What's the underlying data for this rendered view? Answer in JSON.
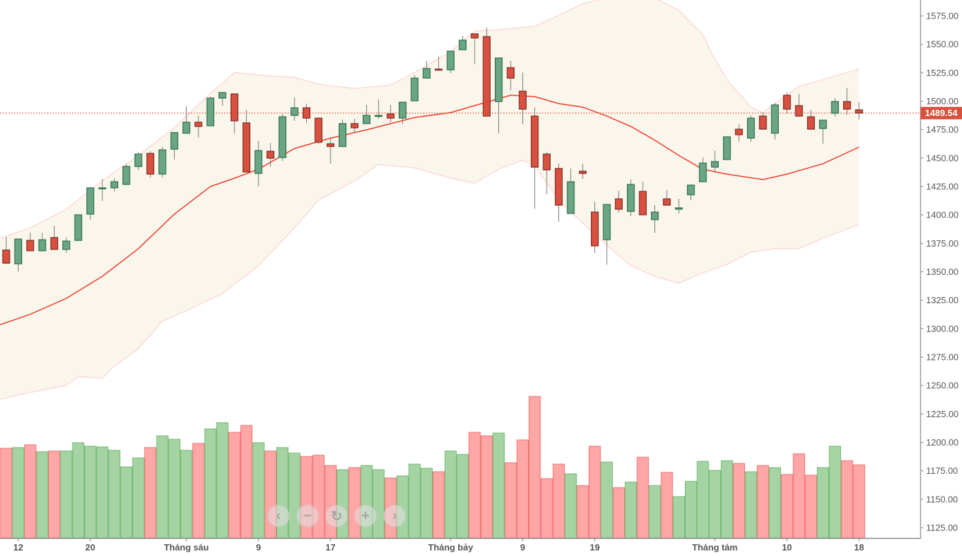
{
  "chart_data": {
    "type": "candlestick",
    "title": "",
    "ylim": [
      1115,
      1590
    ],
    "y_ticks": [
      "1125.00",
      "1150.00",
      "1175.00",
      "1200.00",
      "1225.00",
      "1250.00",
      "1275.00",
      "1300.00",
      "1325.00",
      "1350.00",
      "1375.00",
      "1400.00",
      "1425.00",
      "1450.00",
      "1475.00",
      "1500.00",
      "1525.00",
      "1550.00",
      "1575.00"
    ],
    "x_ticks": [
      {
        "index": 1,
        "label": "12"
      },
      {
        "index": 7,
        "label": "20"
      },
      {
        "index": 15,
        "label": "Tháng sáu"
      },
      {
        "index": 21,
        "label": "9"
      },
      {
        "index": 27,
        "label": "17"
      },
      {
        "index": 37,
        "label": "Tháng bảy"
      },
      {
        "index": 43,
        "label": "9"
      },
      {
        "index": 49,
        "label": "19"
      },
      {
        "index": 59,
        "label": "Tháng tám"
      },
      {
        "index": 65,
        "label": "10"
      },
      {
        "index": 71,
        "label": "18"
      }
    ],
    "last_price": 1489.54,
    "last_price_label": "1489.54",
    "ohlc": [
      [
        1369.1,
        1380.7,
        1357.0,
        1357.6
      ],
      [
        1357.0,
        1378.8,
        1350.3,
        1378.8
      ],
      [
        1377.6,
        1384.3,
        1368.5,
        1368.5
      ],
      [
        1368.5,
        1384.3,
        1368.5,
        1378.2
      ],
      [
        1380.1,
        1390.4,
        1369.7,
        1369.7
      ],
      [
        1369.7,
        1380.1,
        1366.7,
        1377.0
      ],
      [
        1377.6,
        1400.1,
        1377.6,
        1400.1
      ],
      [
        1400.7,
        1423.8,
        1395.9,
        1423.8
      ],
      [
        1423.4,
        1431.7,
        1412.2,
        1423.8
      ],
      [
        1423.8,
        1432.3,
        1420.7,
        1429.2
      ],
      [
        1426.8,
        1445.0,
        1426.8,
        1442.6
      ],
      [
        1442.6,
        1455.4,
        1439.6,
        1453.5
      ],
      [
        1454.1,
        1456.0,
        1432.9,
        1435.9
      ],
      [
        1435.9,
        1459.6,
        1432.9,
        1457.2
      ],
      [
        1457.8,
        1472.4,
        1448.7,
        1472.4
      ],
      [
        1471.8,
        1495.4,
        1471.8,
        1481.5
      ],
      [
        1481.5,
        1487.5,
        1468.1,
        1477.8
      ],
      [
        1478.4,
        1504.0,
        1478.4,
        1502.7
      ],
      [
        1502.7,
        1507.6,
        1496.1,
        1507.6
      ],
      [
        1506.4,
        1506.4,
        1471.8,
        1482.7
      ],
      [
        1480.9,
        1492.4,
        1437.8,
        1437.8
      ],
      [
        1436.5,
        1465.1,
        1425.0,
        1456.6
      ],
      [
        1456.0,
        1463.3,
        1442.6,
        1449.9
      ],
      [
        1450.5,
        1488.8,
        1447.5,
        1486.3
      ],
      [
        1487.5,
        1503.3,
        1482.7,
        1494.2
      ],
      [
        1494.2,
        1497.9,
        1480.9,
        1485.1
      ],
      [
        1485.1,
        1485.1,
        1462.6,
        1463.9
      ],
      [
        1462.6,
        1468.1,
        1445.0,
        1460.2
      ],
      [
        1460.2,
        1483.9,
        1460.2,
        1480.3
      ],
      [
        1480.3,
        1484.5,
        1471.8,
        1476.6
      ],
      [
        1480.3,
        1496.7,
        1480.3,
        1487.5
      ],
      [
        1486.9,
        1501.5,
        1484.5,
        1487.5
      ],
      [
        1488.8,
        1496.7,
        1481.5,
        1485.1
      ],
      [
        1485.1,
        1499.7,
        1479.7,
        1499.1
      ],
      [
        1500.3,
        1522.8,
        1500.3,
        1520.3
      ],
      [
        1520.3,
        1535.5,
        1520.3,
        1528.8
      ],
      [
        1528.2,
        1539.2,
        1527.6,
        1527.6
      ],
      [
        1527.6,
        1544.0,
        1524.6,
        1544.0
      ],
      [
        1545.2,
        1557.4,
        1545.2,
        1553.7
      ],
      [
        1559.2,
        1559.2,
        1532.5,
        1555.6
      ],
      [
        1556.8,
        1564.7,
        1486.9,
        1486.9
      ],
      [
        1499.7,
        1538.0,
        1471.8,
        1538.0
      ],
      [
        1529.5,
        1535.5,
        1509.4,
        1520.3
      ],
      [
        1508.8,
        1525.2,
        1479.7,
        1493.0
      ],
      [
        1486.9,
        1494.8,
        1405.6,
        1442.0
      ],
      [
        1453.5,
        1455.0,
        1418.3,
        1439.6
      ],
      [
        1440.8,
        1445.0,
        1394.0,
        1408.6
      ],
      [
        1401.3,
        1440.8,
        1401.3,
        1429.2
      ],
      [
        1438.4,
        1445.0,
        1431.7,
        1436.5
      ],
      [
        1402.5,
        1411.6,
        1366.7,
        1372.8
      ],
      [
        1378.2,
        1409.2,
        1356.4,
        1409.2
      ],
      [
        1414.1,
        1421.4,
        1401.9,
        1405.0
      ],
      [
        1403.1,
        1431.1,
        1398.9,
        1426.8
      ],
      [
        1420.7,
        1429.2,
        1400.1,
        1400.1
      ],
      [
        1395.9,
        1408.6,
        1384.3,
        1402.5
      ],
      [
        1414.1,
        1421.9,
        1408.6,
        1408.6
      ],
      [
        1405.0,
        1414.1,
        1401.3,
        1406.2
      ],
      [
        1417.7,
        1426.2,
        1412.9,
        1426.2
      ],
      [
        1429.2,
        1450.5,
        1429.2,
        1445.6
      ],
      [
        1442.0,
        1456.6,
        1437.1,
        1446.9
      ],
      [
        1448.7,
        1468.7,
        1448.7,
        1468.7
      ],
      [
        1475.4,
        1479.7,
        1464.5,
        1470.5
      ],
      [
        1467.5,
        1487.5,
        1464.5,
        1485.1
      ],
      [
        1486.9,
        1490.0,
        1475.4,
        1475.4
      ],
      [
        1471.8,
        1498.5,
        1466.3,
        1496.7
      ],
      [
        1505.2,
        1507.6,
        1489.4,
        1493.0
      ],
      [
        1496.1,
        1506.4,
        1486.9,
        1486.9
      ],
      [
        1486.3,
        1492.4,
        1475.4,
        1475.4
      ],
      [
        1476.0,
        1483.3,
        1462.6,
        1483.3
      ],
      [
        1489.4,
        1502.7,
        1486.3,
        1499.7
      ],
      [
        1499.7,
        1511.8,
        1488.2,
        1493.0
      ],
      [
        1492.4,
        1499.1,
        1483.9,
        1489.54
      ]
    ],
    "volume": [
      130,
      131,
      135,
      125,
      126,
      126,
      138,
      133,
      132,
      127,
      103,
      116,
      131,
      148,
      143,
      127,
      137,
      158,
      167,
      153,
      163,
      138,
      126,
      131,
      123,
      118,
      120,
      105,
      99,
      102,
      105,
      99,
      87,
      90,
      107,
      101,
      96,
      126,
      121,
      153,
      148,
      152,
      109,
      142,
      205,
      86,
      107,
      93,
      76,
      133,
      110,
      73,
      81,
      117,
      76,
      95,
      60,
      82,
      111,
      98,
      112,
      108,
      96,
      105,
      102,
      92,
      122,
      91,
      102,
      133,
      112,
      106
    ],
    "bollinger": {
      "upper": {
        "i": [
          -0.5,
          2,
          5,
          8,
          11,
          14,
          17,
          19,
          22,
          24,
          26,
          29,
          32,
          34,
          37,
          39,
          41,
          44,
          46,
          48,
          50,
          52,
          54,
          56,
          58,
          59,
          60,
          62,
          63,
          64,
          66,
          68,
          71
        ],
        "v": [
          1379.5,
          1388.6,
          1405.0,
          1429.9,
          1452.3,
          1476.6,
          1507.0,
          1525.2,
          1522.2,
          1521.0,
          1514.9,
          1511.2,
          1514.3,
          1525.2,
          1543.4,
          1561.6,
          1562.9,
          1565.9,
          1575.6,
          1585.9,
          1590.8,
          1592.0,
          1590.8,
          1579.9,
          1558.6,
          1537.0,
          1519.0,
          1494.8,
          1490.0,
          1497.9,
          1513.1,
          1519.1,
          1528.2
        ]
      },
      "middle": {
        "i": [
          -0.5,
          2,
          5,
          8,
          11,
          14,
          17,
          19,
          21,
          24,
          27,
          30,
          34,
          37,
          39,
          42,
          44,
          46,
          48,
          50,
          52,
          54,
          56,
          58,
          60,
          63,
          65,
          68,
          71
        ],
        "v": [
          1303.5,
          1312.6,
          1326.6,
          1346.0,
          1370.3,
          1400.7,
          1425.0,
          1432.3,
          1440.2,
          1458.4,
          1467.5,
          1474.8,
          1485.7,
          1490.0,
          1496.1,
          1505.2,
          1504.0,
          1497.9,
          1494.8,
          1486.9,
          1477.8,
          1465.7,
          1452.3,
          1440.2,
          1435.9,
          1431.1,
          1435.9,
          1445.0,
          1459.6
        ]
      },
      "lower": {
        "i": [
          -0.5,
          2,
          5,
          6,
          8,
          9,
          11,
          13,
          15,
          18,
          21,
          24,
          26,
          29,
          31,
          34,
          37,
          39,
          41,
          43,
          44,
          46,
          49,
          52,
          54,
          56,
          58,
          60,
          62,
          64,
          66,
          68,
          71
        ],
        "v": [
          1237.9,
          1244.0,
          1250.0,
          1257.9,
          1256.2,
          1267.1,
          1282.3,
          1306.6,
          1315.7,
          1330.9,
          1355.2,
          1388.6,
          1412.9,
          1429.9,
          1444.4,
          1441.4,
          1432.3,
          1428.0,
          1440.2,
          1448.1,
          1443.2,
          1412.9,
          1382.5,
          1355.2,
          1346.0,
          1339.9,
          1349.1,
          1356.4,
          1367.3,
          1370.3,
          1370.3,
          1379.5,
          1391.6
        ]
      }
    },
    "colors": {
      "up_fill": "#6aa584",
      "up_stroke": "#2f6e4c",
      "down_fill": "#d9503f",
      "down_stroke": "#7a2a20",
      "vol_up_fill": "#a6d3a4",
      "vol_up_stroke": "#6dbb6d",
      "vol_down_fill": "#ffa6a6",
      "vol_down_stroke": "#f07272",
      "band_fill": "#faf6ec",
      "band_line": "#ffd2cf",
      "middle_line": "#f03a2a",
      "last_price": "#d9503f"
    }
  },
  "navigator": {
    "buttons": [
      {
        "name": "scroll-left-button",
        "icon": "chevron-left-icon",
        "glyph": "‹"
      },
      {
        "name": "zoom-out-button",
        "icon": "minus-icon",
        "glyph": "−"
      },
      {
        "name": "reset-button",
        "icon": "refresh-icon",
        "glyph": "↻"
      },
      {
        "name": "zoom-in-button",
        "icon": "plus-icon",
        "glyph": "+"
      },
      {
        "name": "scroll-right-button",
        "icon": "chevron-right-icon",
        "glyph": "›"
      }
    ]
  }
}
